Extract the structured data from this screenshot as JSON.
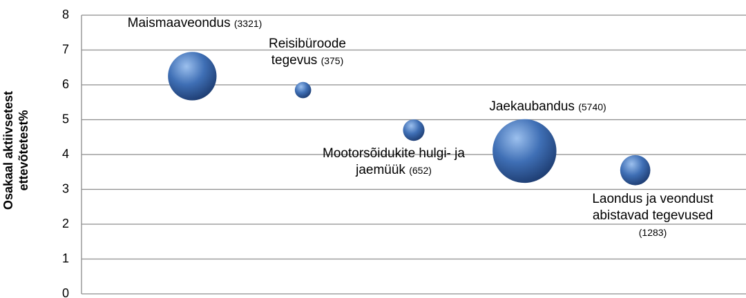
{
  "chart_data": {
    "type": "bubble",
    "ylabel": "Osakaal aktiivsetest ettevõtetest%",
    "names": [
      "Maismaaveondus",
      "Reisibüroode tegevus",
      "Mootorsõidukite hulgi- ja jaemüük",
      "Jaekaubandus",
      "Laondus ja veondust abistavad tegevused"
    ],
    "x": [
      1,
      2,
      3,
      4,
      5
    ],
    "values": [
      6.25,
      5.85,
      4.7,
      4.1,
      3.55
    ],
    "sizes": [
      3321,
      375,
      652,
      5740,
      1283
    ],
    "size_labels": [
      "(3321)",
      "(375)",
      "(652)",
      "(5740)",
      "(1283)"
    ],
    "color": "#3f6fb5",
    "xlim": [
      0,
      6
    ],
    "ylim": [
      0,
      8
    ],
    "yticks": [
      0,
      1,
      2,
      3,
      4,
      5,
      6,
      7,
      8
    ],
    "grid": true
  }
}
